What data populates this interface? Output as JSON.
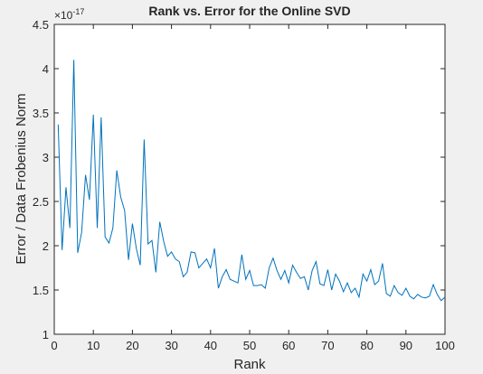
{
  "chart_data": {
    "type": "line",
    "title": "Rank vs. Error for the Online SVD",
    "x_label": "Rank",
    "y_label": "Error / Data Frobenius Norm",
    "y_exponent": {
      "base": "×10",
      "power": "-17"
    },
    "xlim": [
      0,
      100
    ],
    "ylim": [
      1,
      4.5
    ],
    "xticks": [
      0,
      10,
      20,
      30,
      40,
      50,
      60,
      70,
      80,
      90,
      100
    ],
    "yticks": [
      1,
      1.5,
      2,
      2.5,
      3,
      3.5,
      4,
      4.5
    ],
    "grid": false,
    "series": [
      {
        "color": "#0072bd",
        "x": [
          1,
          2,
          3,
          4,
          5,
          6,
          7,
          8,
          9,
          10,
          11,
          12,
          13,
          14,
          15,
          16,
          17,
          18,
          19,
          20,
          21,
          22,
          23,
          24,
          25,
          26,
          27,
          28,
          29,
          30,
          31,
          32,
          33,
          34,
          35,
          36,
          37,
          38,
          39,
          40,
          41,
          42,
          43,
          44,
          45,
          46,
          47,
          48,
          49,
          50,
          51,
          52,
          53,
          54,
          55,
          56,
          57,
          58,
          59,
          60,
          61,
          62,
          63,
          64,
          65,
          66,
          67,
          68,
          69,
          70,
          71,
          72,
          73,
          74,
          75,
          76,
          77,
          78,
          79,
          80,
          81,
          82,
          83,
          84,
          85,
          86,
          87,
          88,
          89,
          90,
          91,
          92,
          93,
          94,
          95,
          96,
          97,
          98,
          99,
          100
        ],
        "values": [
          3.37,
          1.95,
          2.66,
          2.2,
          4.1,
          1.92,
          2.15,
          2.8,
          2.52,
          3.48,
          2.2,
          3.45,
          2.1,
          2.03,
          2.2,
          2.85,
          2.55,
          2.4,
          1.84,
          2.25,
          1.97,
          1.78,
          3.2,
          2.02,
          2.06,
          1.7,
          2.27,
          2.05,
          1.88,
          1.93,
          1.85,
          1.82,
          1.65,
          1.7,
          1.93,
          1.92,
          1.75,
          1.8,
          1.85,
          1.75,
          1.97,
          1.52,
          1.65,
          1.73,
          1.62,
          1.6,
          1.58,
          1.9,
          1.62,
          1.72,
          1.55,
          1.55,
          1.56,
          1.52,
          1.75,
          1.86,
          1.72,
          1.62,
          1.72,
          1.58,
          1.78,
          1.7,
          1.63,
          1.65,
          1.5,
          1.72,
          1.82,
          1.57,
          1.55,
          1.73,
          1.5,
          1.68,
          1.6,
          1.48,
          1.58,
          1.47,
          1.52,
          1.42,
          1.68,
          1.6,
          1.73,
          1.56,
          1.6,
          1.8,
          1.46,
          1.43,
          1.55,
          1.47,
          1.44,
          1.52,
          1.43,
          1.4,
          1.45,
          1.42,
          1.41,
          1.43,
          1.56,
          1.45,
          1.38,
          1.42
        ]
      }
    ]
  }
}
